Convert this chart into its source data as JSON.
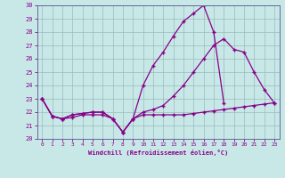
{
  "x": [
    0,
    1,
    2,
    3,
    4,
    5,
    6,
    7,
    8,
    9,
    10,
    11,
    12,
    13,
    14,
    15,
    16,
    17,
    18,
    19,
    20,
    21,
    22,
    23
  ],
  "line1": [
    23,
    21.7,
    21.5,
    21.6,
    21.8,
    21.8,
    21.8,
    21.5,
    20.5,
    21.5,
    21.8,
    21.8,
    21.8,
    21.8,
    21.8,
    21.9,
    22.0,
    22.1,
    22.2,
    22.3,
    22.4,
    22.5,
    22.6,
    22.7
  ],
  "line2": [
    23,
    21.7,
    21.5,
    21.8,
    21.9,
    22.0,
    22.0,
    21.5,
    20.5,
    21.5,
    24.0,
    25.5,
    26.5,
    27.7,
    28.8,
    29.4,
    30.0,
    28.0,
    22.7,
    null,
    null,
    null,
    null,
    null
  ],
  "line3": [
    23,
    21.7,
    21.5,
    21.8,
    21.9,
    22.0,
    22.0,
    21.5,
    20.5,
    21.5,
    22.0,
    22.2,
    22.5,
    23.2,
    24.0,
    25.0,
    26.0,
    27.0,
    27.5,
    26.7,
    26.5,
    25.0,
    23.7,
    22.7
  ],
  "ylim": [
    20,
    30
  ],
  "xlim": [
    -0.5,
    23.5
  ],
  "yticks": [
    20,
    21,
    22,
    23,
    24,
    25,
    26,
    27,
    28,
    29,
    30
  ],
  "xticks": [
    0,
    1,
    2,
    3,
    4,
    5,
    6,
    7,
    8,
    9,
    10,
    11,
    12,
    13,
    14,
    15,
    16,
    17,
    18,
    19,
    20,
    21,
    22,
    23
  ],
  "xlabel": "Windchill (Refroidissement éolien,°C)",
  "line_color": "#880088",
  "bg_color": "#c8e8e8",
  "grid_color": "#99bbbb",
  "spine_color": "#666699"
}
